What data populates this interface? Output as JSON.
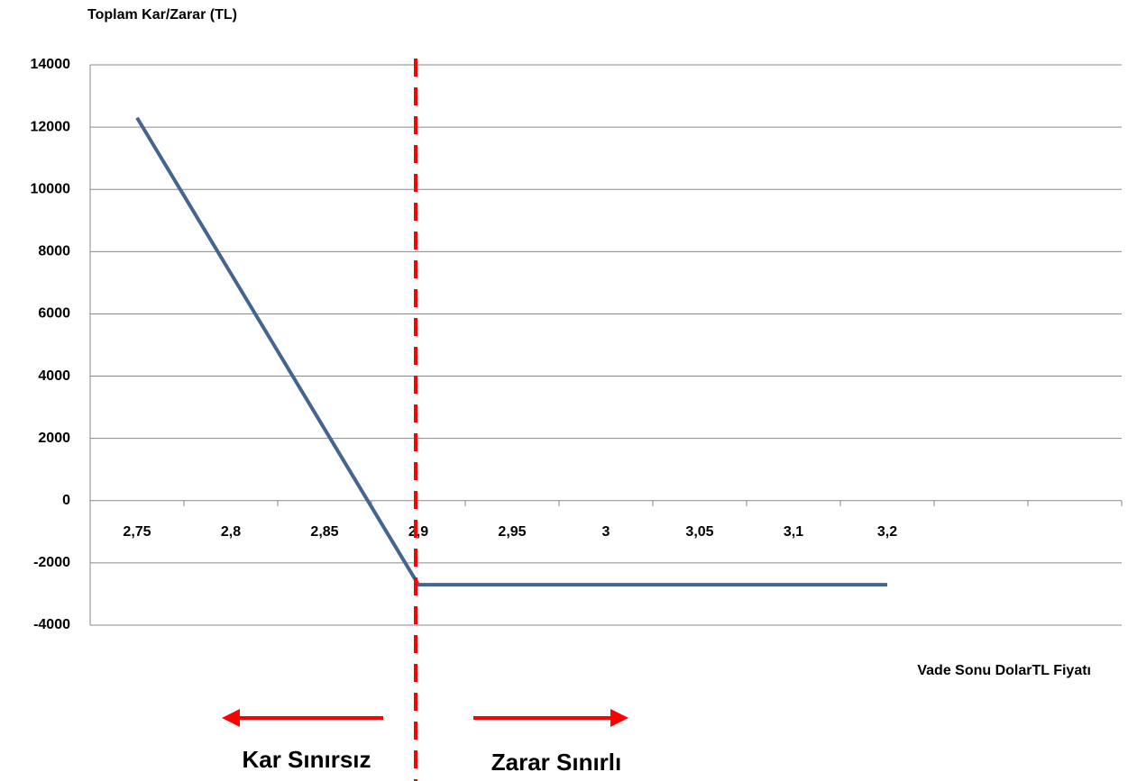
{
  "chart_data": {
    "type": "line",
    "y_axis_title": "Toplam Kar/Zarar (TL)",
    "x_axis_title": "Vade Sonu DolarTL Fiyatı",
    "categories": [
      "2,75",
      "2,8",
      "2,85",
      "2,9",
      "2,95",
      "3",
      "3,05",
      "3,1",
      "3,2",
      null,
      null
    ],
    "series": [
      {
        "name": "Toplam Kar/Zarar",
        "color": "#43658f",
        "values": [
          12300,
          7300,
          2300,
          -2700,
          -2700,
          -2700,
          -2700,
          -2700,
          -2700,
          null,
          null
        ]
      }
    ],
    "ylim": [
      -4000,
      14000
    ],
    "yticks": [
      -4000,
      -2000,
      0,
      2000,
      4000,
      6000,
      8000,
      10000,
      12000,
      14000
    ],
    "grid": true,
    "legend": false,
    "reference_line": {
      "category": "2,9",
      "color": "#ff0000"
    },
    "annotations": [
      "Kar Sınırsız",
      "Zarar Sınırlı"
    ]
  }
}
